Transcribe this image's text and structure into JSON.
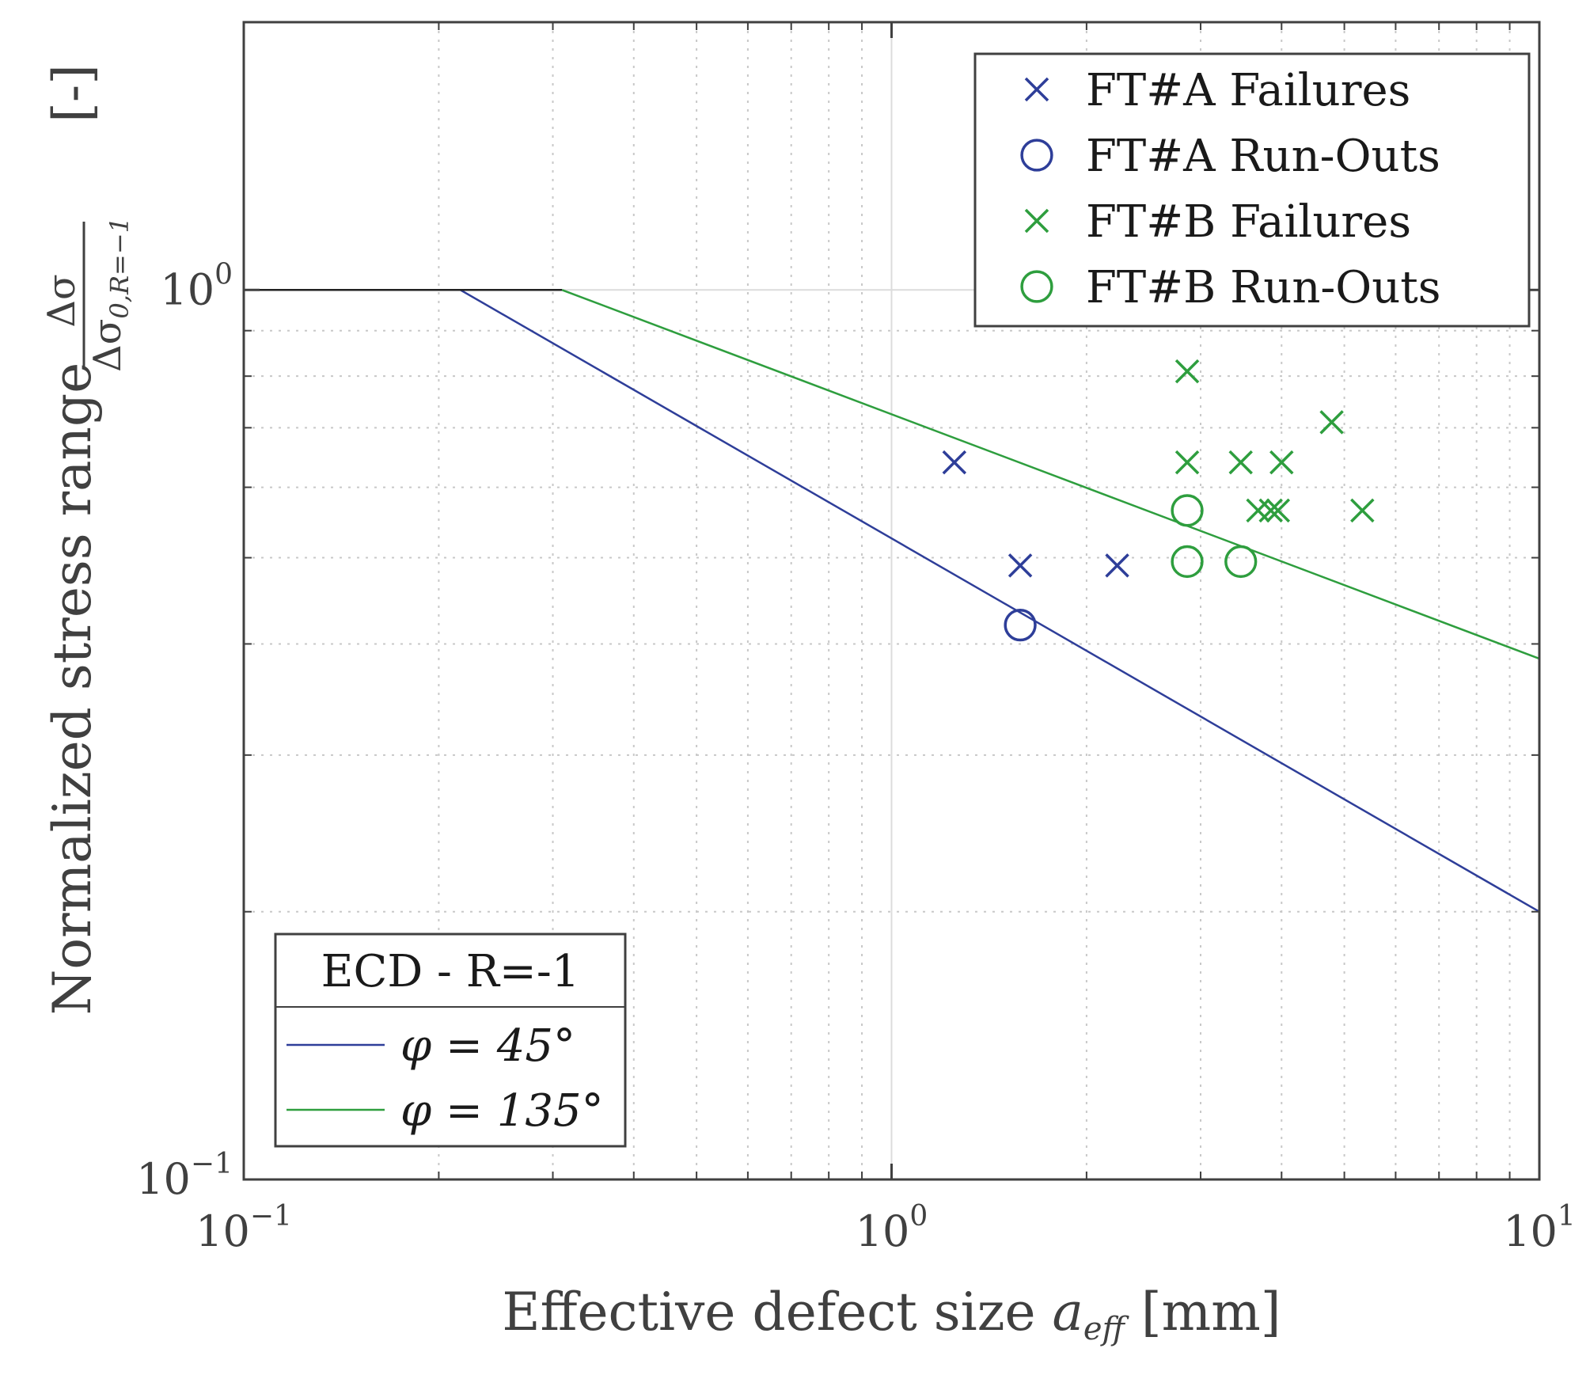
{
  "chart_data": {
    "type": "scatter",
    "x_scale": "log",
    "y_scale": "log",
    "xlim": [
      0.1,
      10
    ],
    "ylim": [
      0.1,
      2
    ],
    "xlabel": "Effective defect size a_eff [mm]",
    "xlabel_parts": {
      "main": "Effective defect size ",
      "var": "a",
      "sub": "eff",
      "unit": " [mm]"
    },
    "ylabel": "Normalized stress range Δσ/Δσ0,R=−1 [-]",
    "ylabel_parts": {
      "main": "Normalized stress range ",
      "num": "Δσ",
      "den": "Δσ",
      "den_sub": "0,R=−1",
      "unit": "[-]"
    },
    "x_ticks": [
      {
        "value": 0.1,
        "base": "10",
        "exp": "−1"
      },
      {
        "value": 1,
        "base": "10",
        "exp": "0"
      },
      {
        "value": 10,
        "base": "10",
        "exp": "1"
      }
    ],
    "y_ticks": [
      {
        "value": 0.1,
        "base": "10",
        "exp": "−1"
      },
      {
        "value": 1,
        "base": "10",
        "exp": "0"
      }
    ],
    "grid": true,
    "series": [
      {
        "name": "FT#A Failures",
        "marker": "x",
        "color": "#2e3e99",
        "points": [
          [
            1.25,
            0.64
          ],
          [
            1.58,
            0.49
          ],
          [
            2.23,
            0.49
          ]
        ]
      },
      {
        "name": "FT#A Run-Outs",
        "marker": "o",
        "color": "#2e3e99",
        "points": [
          [
            1.58,
            0.42
          ]
        ]
      },
      {
        "name": "FT#B Failures",
        "marker": "x",
        "color": "#2e9e3e",
        "points": [
          [
            2.86,
            0.81
          ],
          [
            2.86,
            0.64
          ],
          [
            3.46,
            0.64
          ],
          [
            4.0,
            0.64
          ],
          [
            4.78,
            0.71
          ],
          [
            3.68,
            0.565
          ],
          [
            3.85,
            0.565
          ],
          [
            3.95,
            0.565
          ],
          [
            5.33,
            0.565
          ]
        ]
      },
      {
        "name": "FT#B Run-Outs",
        "marker": "o",
        "color": "#2e9e3e",
        "points": [
          [
            2.86,
            0.565
          ],
          [
            2.86,
            0.495
          ],
          [
            3.46,
            0.495
          ]
        ]
      }
    ],
    "lines": [
      {
        "name": "φ = 45°",
        "color": "#2e3e99",
        "points": [
          [
            0.1,
            1.0
          ],
          [
            0.216,
            1.0
          ],
          [
            10,
            0.2
          ]
        ]
      },
      {
        "name": "φ = 135°",
        "color": "#2e9e3e",
        "points": [
          [
            0.1,
            1.0
          ],
          [
            0.31,
            1.0
          ],
          [
            10,
            0.385
          ]
        ]
      }
    ],
    "legend": {
      "position": "top-right",
      "entries": [
        "FT#A Failures",
        "FT#A Run-Outs",
        "FT#B Failures",
        "FT#B Run-Outs"
      ]
    },
    "legend2": {
      "position": "bottom-left",
      "title": "ECD - R=-1",
      "entries": [
        {
          "label": "φ = 45°",
          "color": "#2e3e99"
        },
        {
          "label": "φ = 135°",
          "color": "#2e9e3e"
        }
      ]
    }
  }
}
